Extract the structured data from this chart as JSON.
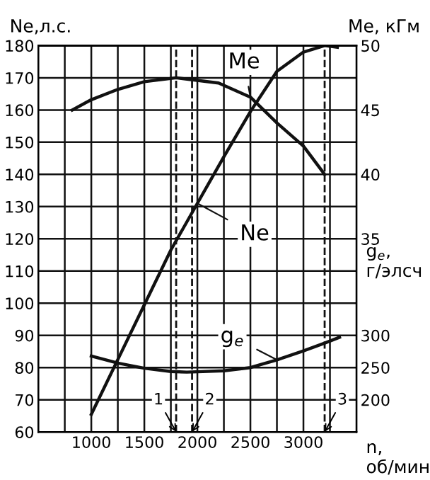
{
  "chart_data": {
    "type": "line",
    "xlabel": "n,\nоб/мин",
    "ylabel": "Ne,л.с.",
    "y2label": "Me, кГм",
    "y3label": "g$_{e}$,\nг/элсч",
    "x": [
      1000,
      1250,
      1500,
      1750,
      2000,
      2250,
      2500,
      2750,
      3000,
      3200,
      3320
    ],
    "series": [
      {
        "name": "Me",
        "color": "#111111",
        "axis": "y2",
        "x": [
          820,
          1000,
          1250,
          1500,
          1800,
          2200,
          2500,
          2750,
          3000,
          3200
        ],
        "values": [
          45,
          45.8,
          46.6,
          47.2,
          47.5,
          47.1,
          46,
          44,
          42.2,
          40
        ]
      },
      {
        "name": "Ne",
        "color": "#111111",
        "values": [
          65.5,
          82.5,
          99.5,
          116.5,
          131,
          145.5,
          159.5,
          172,
          178,
          180,
          179.5
        ]
      },
      {
        "name": "g$_{e}$",
        "color": "#111111",
        "axis": "y3",
        "x": [
          1000,
          1250,
          1500,
          1750,
          1900,
          2250,
          2500,
          2750,
          3000,
          3200,
          3340
        ],
        "values": [
          268,
          257,
          249,
          244,
          243,
          245,
          250,
          262,
          276,
          288,
          297
        ]
      }
    ],
    "xlim": [
      500,
      3500
    ],
    "xticks": [
      {
        "value": 750,
        "label": null
      },
      1000,
      {
        "value": 1250,
        "label": null
      },
      1500,
      {
        "value": 1750,
        "label": null
      },
      2000,
      {
        "value": 2250,
        "label": null
      },
      2500,
      {
        "value": 2750,
        "label": null
      },
      3000,
      {
        "value": 3250,
        "label": null
      }
    ],
    "ylim": [
      60,
      180
    ],
    "yticks": [
      60,
      70,
      80,
      90,
      100,
      110,
      120,
      130,
      140,
      150,
      160,
      170,
      180
    ],
    "y2lim": [
      20,
      50
    ],
    "y2ticks": [
      35,
      40,
      45,
      50
    ],
    "y3lim": [
      150,
      750
    ],
    "y3ticks": [
      200,
      250,
      300
    ],
    "ref_lines": [
      {
        "axis": "x",
        "value": 1800,
        "line_style": "dashed"
      },
      {
        "axis": "x",
        "value": 1950,
        "line_style": "dashed"
      },
      {
        "axis": "x",
        "value": 3200,
        "line_style": "dashed"
      }
    ],
    "annotations": [
      {
        "text": "1",
        "x": 1800,
        "y": 60
      },
      {
        "text": "2",
        "x": 1950,
        "y": 60
      },
      {
        "text": "3",
        "x": 3200,
        "y": 60
      }
    ],
    "grid": true,
    "line_style": "solid",
    "marker": "none"
  }
}
